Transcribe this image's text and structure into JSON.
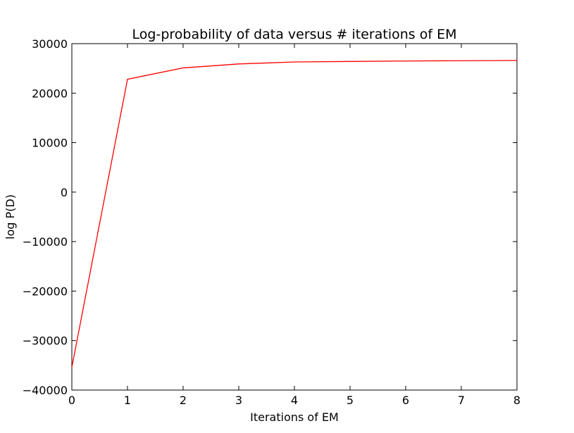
{
  "chart_data": {
    "type": "line",
    "title": "Log-probability of data versus # iterations of EM",
    "xlabel": "Iterations of EM",
    "ylabel": "log P(D)",
    "xlim": [
      0,
      8
    ],
    "ylim": [
      -40000,
      30000
    ],
    "xticks": [
      "0",
      "1",
      "2",
      "3",
      "4",
      "5",
      "6",
      "7",
      "8"
    ],
    "yticks": [
      "30000",
      "20000",
      "10000",
      "0",
      "−10000",
      "−20000",
      "−30000",
      "−40000"
    ],
    "grid": false,
    "legend": "none",
    "series": [
      {
        "color": "#ff0000",
        "x": [
          0,
          1,
          2,
          3,
          4,
          5,
          6,
          7,
          8
        ],
        "y": [
          -35400,
          22800,
          25100,
          25900,
          26300,
          26400,
          26500,
          26550,
          26600
        ]
      }
    ]
  }
}
